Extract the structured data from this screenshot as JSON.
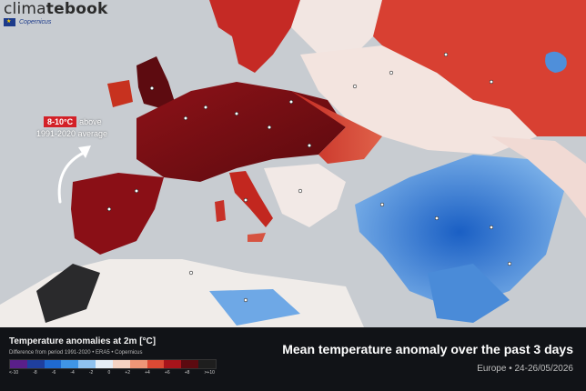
{
  "brand": {
    "prefix": "clima",
    "bold": "tebook",
    "partner": "Copernicus"
  },
  "callout": {
    "highlight": "8-10°C",
    "rest1": "above",
    "rest2": "1991-2020 average"
  },
  "legend": {
    "title": "Temperature anomalies at 2m [°C]",
    "subtitle": "Difference from period 1991-2020 • ERA5 • Copernicus",
    "ticks": [
      "<-10",
      "-8",
      "-6",
      "-4",
      "-2",
      "0",
      "+2",
      "+4",
      "+6",
      "+8",
      ">+10"
    ],
    "colors": [
      "#5a1f8a",
      "#1f3f9e",
      "#1f6ad1",
      "#3f95e6",
      "#8fc2ef",
      "#e6eef6",
      "#f6d3c2",
      "#ee9677",
      "#dc4a34",
      "#a8141b",
      "#5c0a10",
      "#1e1e1e"
    ]
  },
  "title": {
    "main": "Mean temperature anomaly over the past 3 days",
    "sub": "Europe • 24-26/05/2026"
  },
  "colors": {
    "sea": "#c8ccd1",
    "land_warm": "#b81d1d",
    "land_hot": "#6d0d12",
    "land_cold": "#2d7fd8",
    "land_neutral": "#efe9e6"
  }
}
